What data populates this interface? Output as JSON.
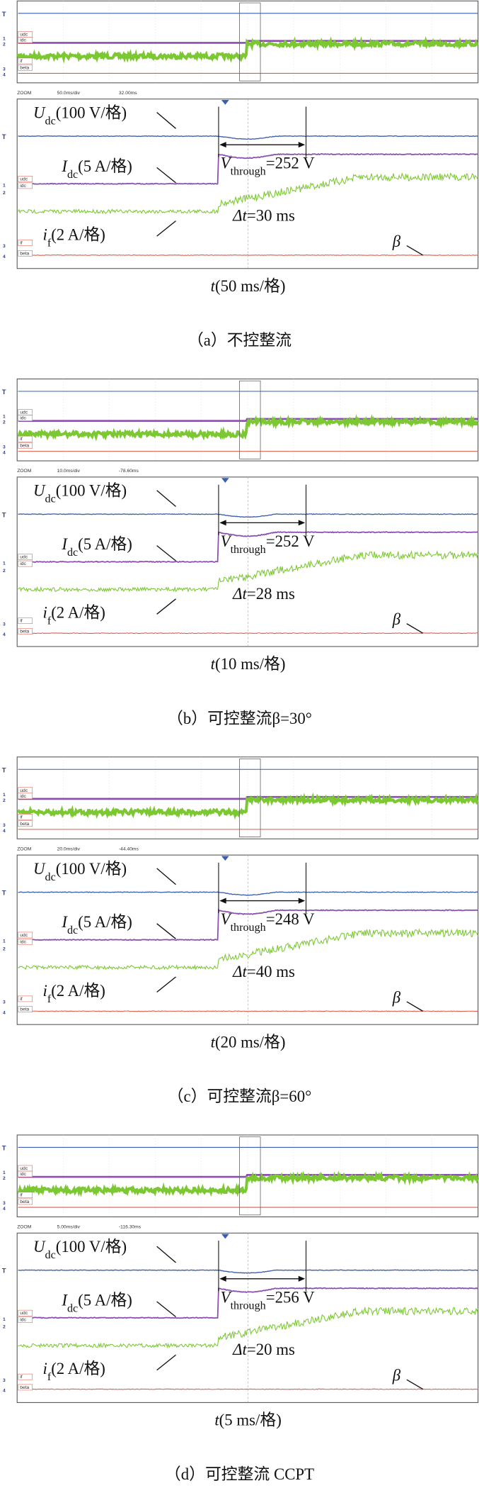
{
  "scope": {
    "trigger": "T",
    "channels": [
      "1",
      "2",
      "3",
      "4"
    ],
    "names": [
      "udc",
      "idc",
      "if",
      "beta"
    ],
    "zoom": "ZOOM"
  },
  "labels": {
    "udc": {
      "symbol": "U",
      "sub": "dc",
      "unit": "(100 V/格)"
    },
    "idc": {
      "symbol": "I",
      "sub": "dc",
      "unit": "(5 A/格)"
    },
    "if": {
      "symbol": "i",
      "sub": "f",
      "unit": "(2 A/格)"
    },
    "vthrough": {
      "symbol": "V",
      "sub": "through"
    },
    "dt_symbol": "Δt",
    "beta": "β",
    "time_symbol": "t"
  },
  "panels": [
    {
      "scale": "50.0ms/div",
      "offset": "32.00ms",
      "vthrough": "=252 V",
      "dt": "=30 ms",
      "time_unit": "(50 ms/格)",
      "caption": "（a）不控整流"
    },
    {
      "scale": "10.0ms/div",
      "offset": "-78.60ms",
      "vthrough": "=252 V",
      "dt": "=28 ms",
      "time_unit": "(10 ms/格)",
      "caption": "（b）可控整流β=30°"
    },
    {
      "scale": "20.0ms/div",
      "offset": "-44.40ms",
      "vthrough": "=248 V",
      "dt": "=40 ms",
      "time_unit": "(20 ms/格)",
      "caption": "（c）可控整流β=60°"
    },
    {
      "scale": "5.00ms/div",
      "offset": "-116.30ms",
      "vthrough": "=256 V",
      "dt": "=20 ms",
      "time_unit": "(5 ms/格)",
      "caption": "（d）可控整流 CCPT"
    }
  ]
}
